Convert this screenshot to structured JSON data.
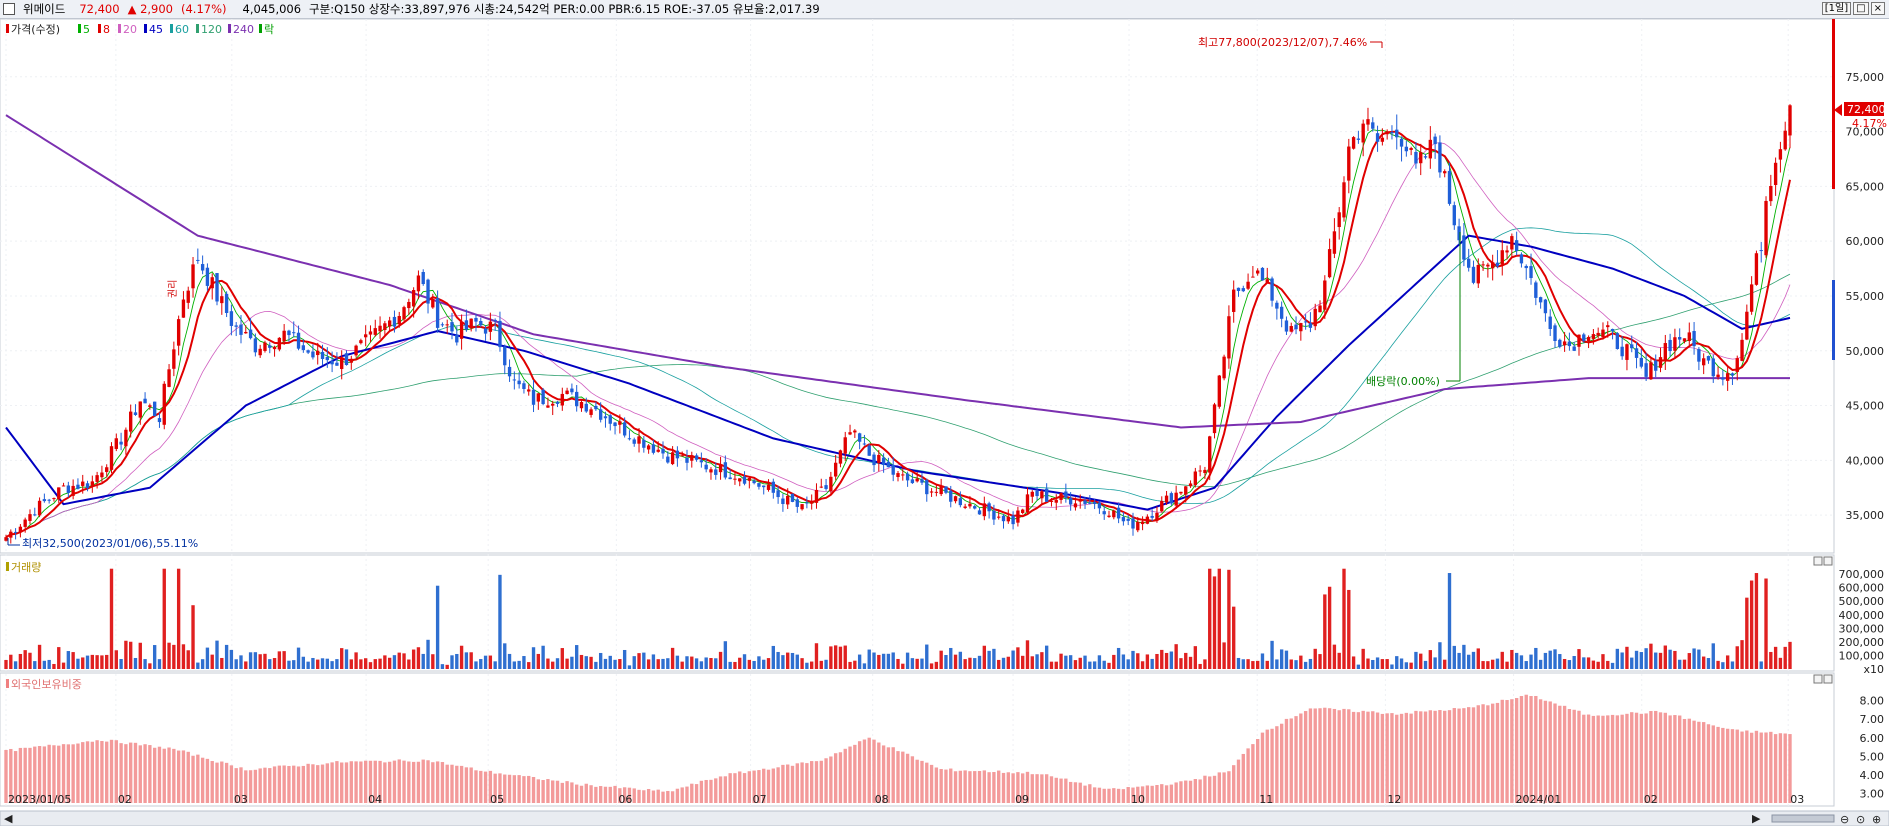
{
  "topbar": {
    "name": "위메이드",
    "price": "72,400",
    "change": "▲ 2,900",
    "change_pct": "(4.17%)",
    "volume": "4,045,006",
    "stats": "구분:Q150 상장수:33,897,976 시총:24,542억 PER:0.00 PBR:6.15 ROE:-37.05 유보율:2,017.39",
    "period": "[1일]",
    "win_buttons": [
      "□",
      "×"
    ]
  },
  "legend": {
    "price_label": "가격(수정)",
    "ma": [
      {
        "label": "5",
        "color": "#00b000"
      },
      {
        "label": "8",
        "color": "#e00000"
      },
      {
        "label": "20",
        "color": "#d060c0"
      },
      {
        "label": "45",
        "color": "#0000c0"
      },
      {
        "label": "60",
        "color": "#1aa0a0"
      },
      {
        "label": "120",
        "color": "#30a070"
      },
      {
        "label": "240",
        "color": "#7b30b0"
      }
    ],
    "ex_label": "락",
    "volume_label": "거래량",
    "foreign_label": "외국인보유비중"
  },
  "annotations": {
    "high": "최고77,800(2023/12/07),7.46%",
    "low": "최저32,500(2023/01/06),55.11%",
    "dividend": "배당락(0.00%)",
    "rights": "권리",
    "last_price": "72,400",
    "last_pct": "4.17%"
  },
  "chart_data": {
    "type": "candlestick",
    "x_tick_labels": [
      "2023/01/05",
      "02",
      "03",
      "04",
      "05",
      "06",
      "07",
      "08",
      "09",
      "10",
      "11",
      "12",
      "2024/01",
      "02",
      "03"
    ],
    "price_axis": {
      "ticks": [
        "75,000",
        "70,000",
        "65,000",
        "60,000",
        "55,000",
        "50,000",
        "45,000",
        "40,000",
        "35,000"
      ],
      "range": [
        32000,
        80000
      ]
    },
    "volume_axis": {
      "ticks": [
        "700,000",
        "600,000",
        "500,000",
        "400,000",
        "300,000",
        "200,000",
        "100,000",
        "x10"
      ],
      "range": [
        0,
        760000
      ]
    },
    "foreign_axis": {
      "ticks": [
        "8.00",
        "7.00",
        "6.00",
        "5.00",
        "4.00",
        "3.00"
      ],
      "range": [
        2.5,
        9.0
      ]
    },
    "high": 77800,
    "low": 32500,
    "last_close": 72400,
    "anchors": [
      [
        0,
        33000
      ],
      [
        6,
        35500
      ],
      [
        12,
        37500
      ],
      [
        18,
        38000
      ],
      [
        24,
        42000
      ],
      [
        28,
        45500
      ],
      [
        32,
        44000
      ],
      [
        37,
        55000
      ],
      [
        40,
        58500
      ],
      [
        44,
        55000
      ],
      [
        48,
        52000
      ],
      [
        52,
        50500
      ],
      [
        58,
        51500
      ],
      [
        64,
        49500
      ],
      [
        70,
        49000
      ],
      [
        76,
        51000
      ],
      [
        82,
        53500
      ],
      [
        86,
        56500
      ],
      [
        90,
        53000
      ],
      [
        94,
        51500
      ],
      [
        98,
        52500
      ],
      [
        102,
        52000
      ],
      [
        106,
        47000
      ],
      [
        110,
        45500
      ],
      [
        116,
        46000
      ],
      [
        122,
        45000
      ],
      [
        130,
        42500
      ],
      [
        138,
        40500
      ],
      [
        146,
        39500
      ],
      [
        154,
        38500
      ],
      [
        160,
        37000
      ],
      [
        166,
        35500
      ],
      [
        171,
        37500
      ],
      [
        176,
        42500
      ],
      [
        180,
        40500
      ],
      [
        186,
        38500
      ],
      [
        192,
        37500
      ],
      [
        198,
        36500
      ],
      [
        204,
        35500
      ],
      [
        210,
        34500
      ],
      [
        214,
        37000
      ],
      [
        218,
        36500
      ],
      [
        224,
        36500
      ],
      [
        230,
        35500
      ],
      [
        234,
        34000
      ],
      [
        238,
        35000
      ],
      [
        244,
        37000
      ],
      [
        250,
        39500
      ],
      [
        253,
        47000
      ],
      [
        256,
        55000
      ],
      [
        260,
        57500
      ],
      [
        264,
        55000
      ],
      [
        268,
        51500
      ],
      [
        272,
        52500
      ],
      [
        275,
        56000
      ],
      [
        278,
        63000
      ],
      [
        280,
        68500
      ],
      [
        283,
        71000
      ],
      [
        286,
        69000
      ],
      [
        290,
        70500
      ],
      [
        294,
        66500
      ],
      [
        298,
        69000
      ],
      [
        302,
        62000
      ],
      [
        306,
        56500
      ],
      [
        310,
        58000
      ],
      [
        314,
        60500
      ],
      [
        318,
        56500
      ],
      [
        322,
        52000
      ],
      [
        326,
        50500
      ],
      [
        330,
        52000
      ],
      [
        334,
        51500
      ],
      [
        338,
        50000
      ],
      [
        342,
        47500
      ],
      [
        346,
        50500
      ],
      [
        350,
        51500
      ],
      [
        354,
        49000
      ],
      [
        358,
        48000
      ],
      [
        360,
        48500
      ],
      [
        362,
        51000
      ],
      [
        364,
        56000
      ],
      [
        366,
        60000
      ],
      [
        367,
        64000
      ],
      [
        369,
        68000
      ],
      [
        371,
        70500
      ],
      [
        372,
        72400
      ]
    ],
    "ma240_anchors": [
      [
        0,
        71500
      ],
      [
        40,
        60500
      ],
      [
        80,
        56000
      ],
      [
        110,
        51500
      ],
      [
        150,
        48500
      ],
      [
        200,
        45500
      ],
      [
        245,
        43000
      ],
      [
        270,
        43500
      ],
      [
        300,
        46500
      ],
      [
        330,
        47500
      ],
      [
        372,
        47500
      ]
    ],
    "ma45_anchors": [
      [
        0,
        43000
      ],
      [
        12,
        36000
      ],
      [
        30,
        37500
      ],
      [
        50,
        45000
      ],
      [
        70,
        49500
      ],
      [
        90,
        51800
      ],
      [
        108,
        50000
      ],
      [
        130,
        47000
      ],
      [
        160,
        42000
      ],
      [
        190,
        39000
      ],
      [
        220,
        37000
      ],
      [
        238,
        35500
      ],
      [
        252,
        37500
      ],
      [
        265,
        44000
      ],
      [
        280,
        50500
      ],
      [
        295,
        56500
      ],
      [
        305,
        60500
      ],
      [
        318,
        59500
      ],
      [
        335,
        57500
      ],
      [
        350,
        55000
      ],
      [
        362,
        52000
      ],
      [
        372,
        53000
      ]
    ]
  }
}
